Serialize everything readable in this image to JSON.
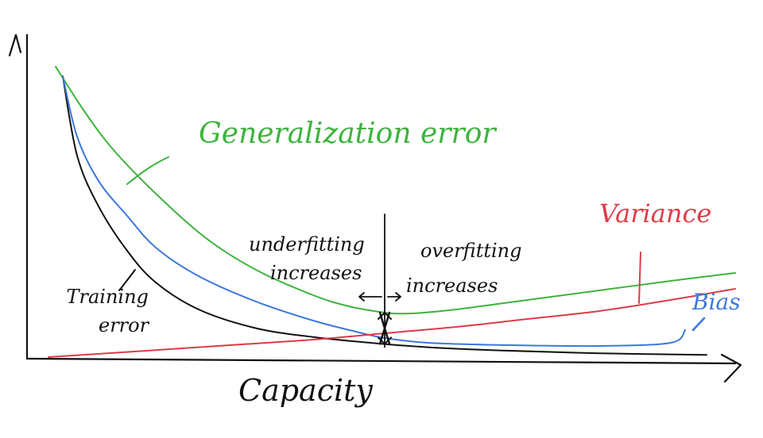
{
  "chart_data": {
    "type": "line",
    "title": "",
    "xlabel": "Capacity",
    "ylabel": "",
    "grid": false,
    "legend": "none",
    "xlim": [
      0,
      100
    ],
    "ylim": [
      0,
      100
    ],
    "series": [
      {
        "name": "Generalization error",
        "color": "#3cb43c",
        "x": [
          4,
          8,
          12,
          18,
          25,
          32,
          40,
          45,
          50,
          52,
          55,
          60,
          70,
          80,
          90,
          99
        ],
        "y": [
          92,
          78,
          66,
          52,
          38,
          28,
          20,
          16.5,
          14.5,
          14.2,
          14.4,
          15.5,
          18.5,
          21.5,
          24.5,
          27
        ]
      },
      {
        "name": "Training error",
        "color": "#111111",
        "x": [
          5,
          7,
          10,
          14,
          18,
          24,
          32,
          40,
          48,
          56,
          66,
          80,
          95
        ],
        "y": [
          89,
          64,
          48,
          34,
          24,
          15.5,
          9.6,
          6.8,
          5,
          3.6,
          2.6,
          1.7,
          1.2
        ]
      },
      {
        "name": "Bias",
        "color": "#3c78dc",
        "x": [
          5,
          7,
          10,
          14,
          18,
          24,
          32,
          40,
          46,
          50,
          56,
          66,
          80,
          90,
          92
        ],
        "y": [
          89,
          70,
          56,
          45,
          35,
          26,
          18,
          12,
          8.5,
          6.5,
          5,
          4.3,
          4,
          5,
          9
        ]
      },
      {
        "name": "Variance",
        "color": "#dc3c46",
        "x": [
          3,
          10,
          20,
          30,
          40,
          50,
          60,
          70,
          80,
          90,
          99
        ],
        "y": [
          0.5,
          1.5,
          3,
          4.5,
          6,
          8,
          10,
          12.5,
          15,
          18.5,
          22
        ]
      }
    ],
    "annotations": [
      {
        "name": "generalization",
        "text": "Generalization error",
        "color": "#3cb43c",
        "x": 24,
        "y": 68
      },
      {
        "name": "variance",
        "text": "Variance",
        "color": "#dc3c46",
        "x": 80,
        "y": 43
      },
      {
        "name": "bias",
        "text": "Bias",
        "color": "#3c78dc",
        "x": 93,
        "y": 15.5
      },
      {
        "name": "training-1",
        "text": "Training",
        "color": "#111111",
        "x": 5.5,
        "y": 17.5
      },
      {
        "name": "training-2",
        "text": "error",
        "color": "#111111",
        "x": 10,
        "y": 8.5
      },
      {
        "name": "underfitting-1",
        "text": "underfitting",
        "color": "#111111",
        "x": 31,
        "y": 34
      },
      {
        "name": "underfitting-2",
        "text": "increases",
        "color": "#111111",
        "x": 34,
        "y": 25
      },
      {
        "name": "overfitting-1",
        "text": "overfitting",
        "color": "#111111",
        "x": 55,
        "y": 32
      },
      {
        "name": "overfitting-2",
        "text": "increases",
        "color": "#111111",
        "x": 53,
        "y": 21
      }
    ],
    "optimum_x": 50
  }
}
